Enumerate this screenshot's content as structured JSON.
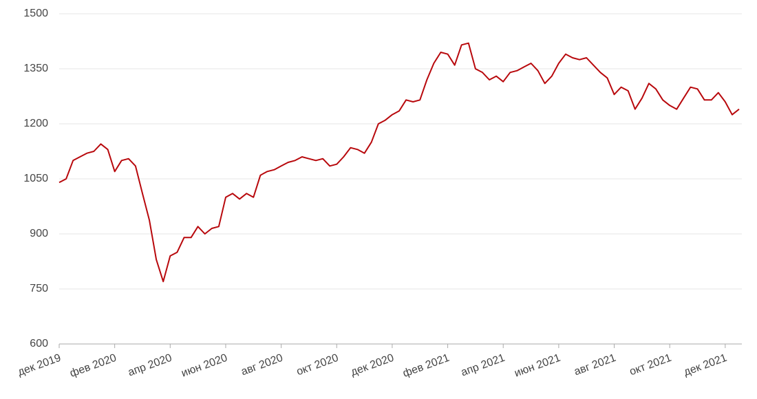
{
  "chart_data": {
    "type": "line",
    "categories": [
      "дек 2019",
      null,
      null,
      null,
      null,
      null,
      null,
      null,
      "фев 2020",
      null,
      null,
      null,
      null,
      null,
      null,
      null,
      "апр 2020",
      null,
      null,
      null,
      null,
      null,
      null,
      null,
      "июн 2020",
      null,
      null,
      null,
      null,
      null,
      null,
      null,
      "авг 2020",
      null,
      null,
      null,
      null,
      null,
      null,
      null,
      "окт 2020",
      null,
      null,
      null,
      null,
      null,
      null,
      null,
      "дек 2020",
      null,
      null,
      null,
      null,
      null,
      null,
      null,
      "фев 2021",
      null,
      null,
      null,
      null,
      null,
      null,
      null,
      "апр 2021",
      null,
      null,
      null,
      null,
      null,
      null,
      null,
      "июн 2021",
      null,
      null,
      null,
      null,
      null,
      null,
      null,
      "авг 2021",
      null,
      null,
      null,
      null,
      null,
      null,
      null,
      "окт 2021",
      null,
      null,
      null,
      null,
      null,
      null,
      null,
      "дек 2021",
      null,
      null
    ],
    "values": [
      1040,
      1050,
      1100,
      1110,
      1120,
      1125,
      1145,
      1130,
      1070,
      1100,
      1105,
      1085,
      1010,
      937,
      830,
      770,
      840,
      850,
      890,
      890,
      920,
      900,
      915,
      920,
      1000,
      1010,
      995,
      1010,
      1000,
      1060,
      1070,
      1075,
      1085,
      1095,
      1100,
      1110,
      1105,
      1100,
      1105,
      1085,
      1090,
      1110,
      1135,
      1130,
      1120,
      1150,
      1200,
      1210,
      1225,
      1235,
      1265,
      1260,
      1265,
      1320,
      1365,
      1395,
      1390,
      1360,
      1415,
      1420,
      1350,
      1340,
      1320,
      1330,
      1315,
      1340,
      1345,
      1355,
      1365,
      1345,
      1310,
      1330,
      1365,
      1390,
      1380,
      1375,
      1380,
      1360,
      1340,
      1325,
      1280,
      1300,
      1290,
      1240,
      1270,
      1310,
      1295,
      1265,
      1250,
      1240,
      1270,
      1300,
      1295,
      1265,
      1265,
      1285,
      1260,
      1225,
      1240
    ],
    "color": "#b8080c",
    "ylim": [
      600,
      1500
    ],
    "yticks": [
      600,
      750,
      900,
      1050,
      1200,
      1350,
      1500
    ],
    "grid": true
  }
}
